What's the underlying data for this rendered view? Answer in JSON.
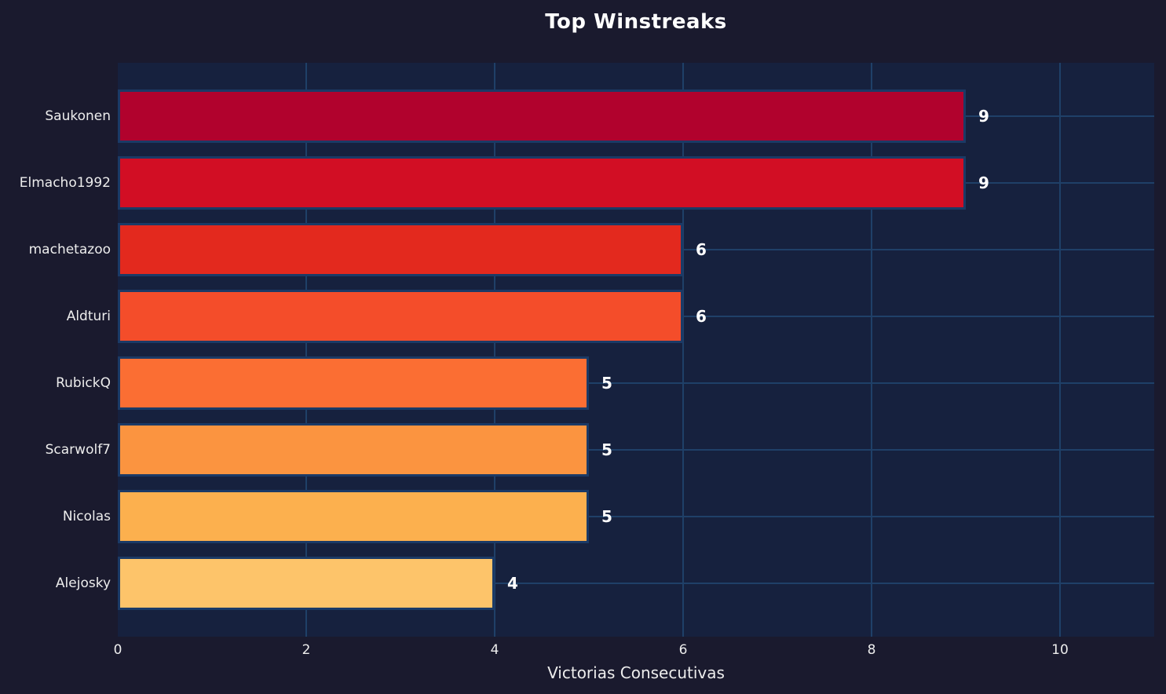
{
  "chart_data": {
    "type": "bar",
    "orientation": "horizontal",
    "title": "Top Winstreaks",
    "xlabel": "Victorias Consecutivas",
    "ylabel": "",
    "categories": [
      "Saukonen",
      "Elmacho1992",
      "machetazoo",
      "Aldturi",
      "RubickQ",
      "Scarwolf7",
      "Nicolas",
      "Alejosky"
    ],
    "values": [
      9,
      9,
      6,
      6,
      5,
      5,
      5,
      4
    ],
    "value_labels": [
      "9",
      "9",
      "6",
      "6",
      "5",
      "5",
      "5",
      "4"
    ],
    "bar_colors": [
      "#b1022d",
      "#d20e24",
      "#e3291e",
      "#f44d2a",
      "#fb6e33",
      "#fb9440",
      "#fcb04e",
      "#fdc46a"
    ],
    "xlim": [
      0,
      11
    ],
    "xticks": [
      0,
      2,
      4,
      6,
      8,
      10
    ],
    "xtick_labels": [
      "0",
      "2",
      "4",
      "6",
      "8",
      "10"
    ],
    "grid": true,
    "legend": false,
    "colors": {
      "background": "#1a1a2e",
      "plot_background": "#16213e",
      "gridline": "#1f4068",
      "bar_border": "#1b3a66",
      "title_text": "#ffffff",
      "axis_text": "#ededed",
      "value_text": "#ffffff"
    }
  }
}
